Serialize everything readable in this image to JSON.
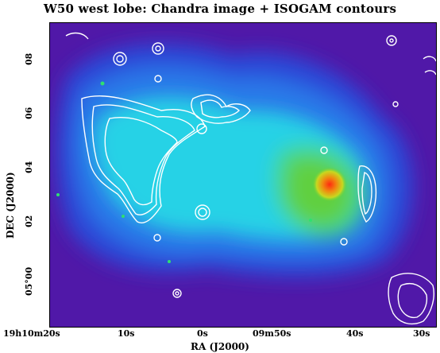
{
  "title": "W50 west lobe: Chandra image + ISOGAM contours",
  "axes": {
    "x_label": "RA (J2000)",
    "y_label": "DEC (J2000)",
    "x_ticks": [
      "19h10m20s",
      "10s",
      "0s",
      "09m50s",
      "40s",
      "30s"
    ],
    "y_ticks": [
      "08",
      "06",
      "04",
      "02",
      "05°00"
    ]
  },
  "colors": {
    "background": "#5018a8",
    "diffuse_emission": "#28d2e6",
    "hot_spot": "#e8401c",
    "contours": "#ffffff"
  }
}
